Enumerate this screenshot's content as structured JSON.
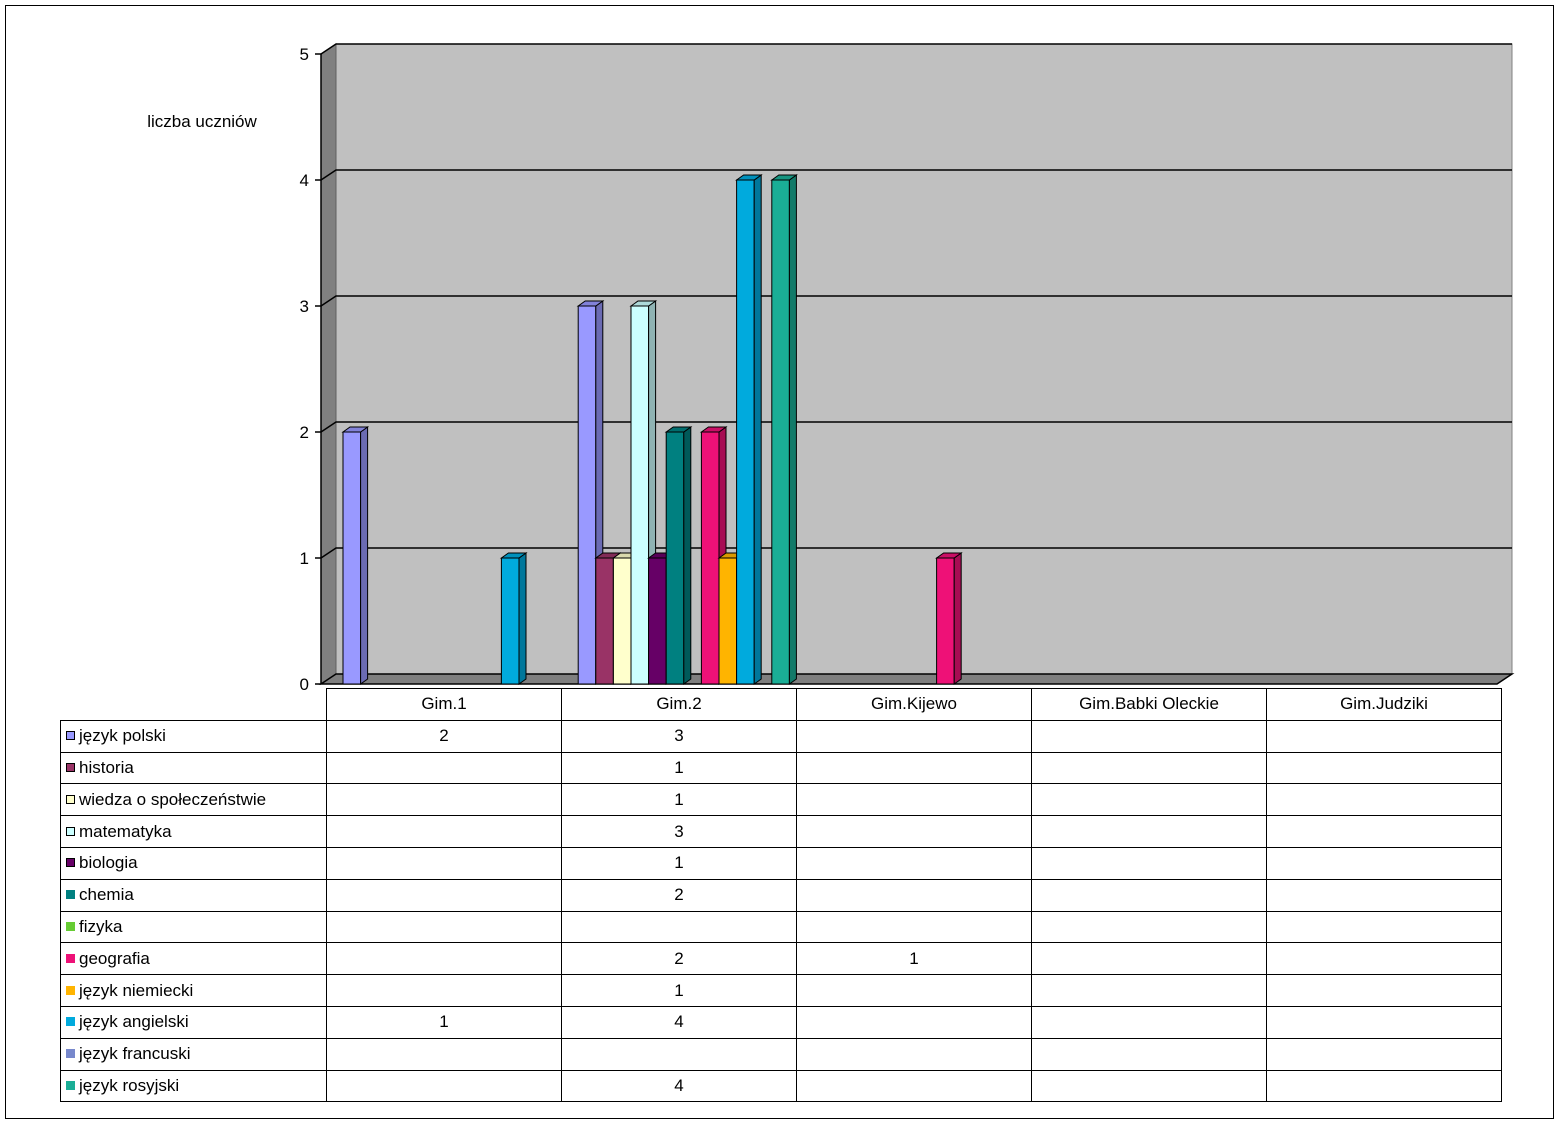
{
  "chart_data": {
    "type": "bar",
    "ylabel": "liczba uczniów",
    "ylim": [
      0,
      5
    ],
    "yticks": [
      0,
      1,
      2,
      3,
      4,
      5
    ],
    "grid": true,
    "categories": [
      "Gim.1",
      "Gim.2",
      "Gim.Kijewo",
      "Gim.Babki Oleckie",
      "Gim.Judziki"
    ],
    "series": [
      {
        "name": "język polski",
        "color": "#9999ff",
        "values": [
          2,
          3,
          null,
          null,
          null
        ]
      },
      {
        "name": "historia",
        "color": "#993366",
        "values": [
          null,
          1,
          null,
          null,
          null
        ]
      },
      {
        "name": "wiedza o społeczeństwie",
        "color": "#ffffcc",
        "values": [
          null,
          1,
          null,
          null,
          null
        ]
      },
      {
        "name": "matematyka",
        "color": "#ccffff",
        "values": [
          null,
          3,
          null,
          null,
          null
        ]
      },
      {
        "name": "biologia",
        "color": "#660066",
        "values": [
          null,
          1,
          null,
          null,
          null
        ]
      },
      {
        "name": "chemia",
        "color": "#008080",
        "values": [
          null,
          2,
          null,
          null,
          null
        ]
      },
      {
        "name": "fizyka",
        "color": "#66cc33",
        "values": [
          null,
          null,
          null,
          null,
          null
        ]
      },
      {
        "name": "geografia",
        "color": "#ee1177",
        "values": [
          null,
          2,
          1,
          null,
          null
        ]
      },
      {
        "name": "język niemiecki",
        "color": "#ffb400",
        "values": [
          null,
          1,
          null,
          null,
          null
        ]
      },
      {
        "name": "język angielski",
        "color": "#00aadd",
        "values": [
          1,
          4,
          null,
          null,
          null
        ]
      },
      {
        "name": "język francuski",
        "color": "#7788cc",
        "values": [
          null,
          null,
          null,
          null,
          null
        ]
      },
      {
        "name": "język rosyjski",
        "color": "#1aae96",
        "values": [
          null,
          4,
          null,
          null,
          null
        ]
      }
    ]
  }
}
